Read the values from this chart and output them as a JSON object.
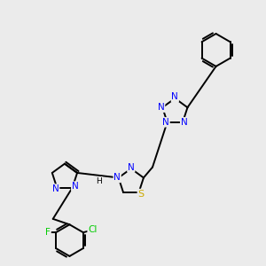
{
  "background_color": "#ebebeb",
  "atom_colors": {
    "N": "#0000ff",
    "S": "#ccaa00",
    "F": "#00cc00",
    "Cl": "#00cc00",
    "C": "#000000",
    "H": "#000000"
  },
  "bond_color": "#000000",
  "bond_lw": 1.4,
  "fs": 7.5
}
